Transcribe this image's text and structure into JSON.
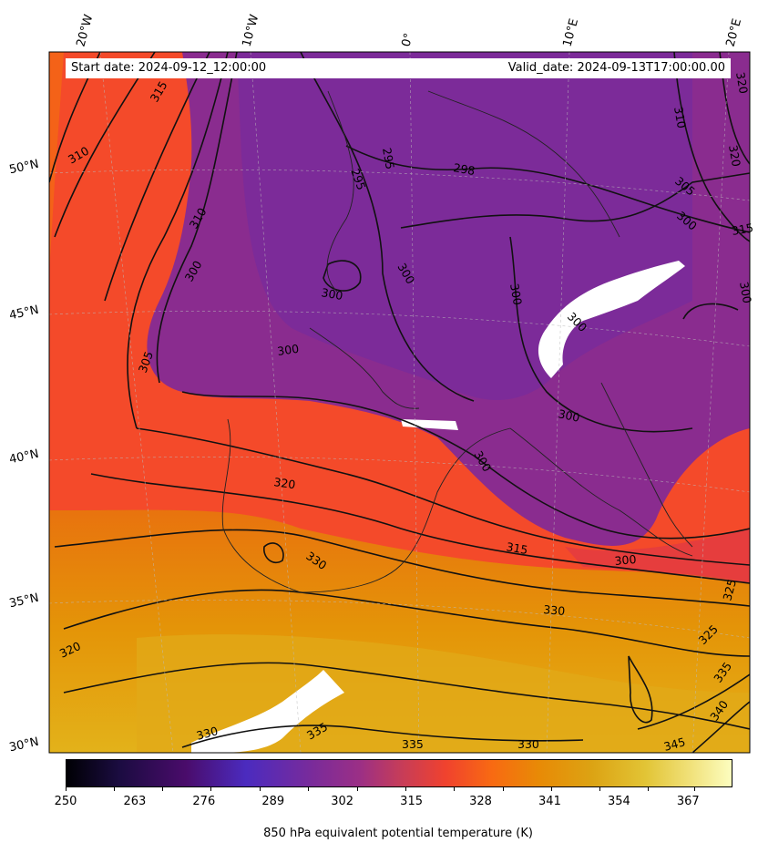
{
  "header": {
    "start_date": "Start date: 2024-09-12_12:00:00",
    "valid_date": "Valid_date: 2024-09-13T17:00:00.00"
  },
  "longitude_labels": [
    "20°W",
    "10°W",
    "0°",
    "10°E",
    "20°E"
  ],
  "latitude_labels": [
    "50°N",
    "45°N",
    "40°N",
    "35°N",
    "30°N"
  ],
  "contour_labels": [
    "300",
    "305",
    "310",
    "315",
    "320",
    "325",
    "330",
    "335",
    "340",
    "345",
    "295",
    "298"
  ],
  "colorbar": {
    "ticks": [
      "250",
      "263",
      "276",
      "289",
      "302",
      "315",
      "328",
      "341",
      "354",
      "367"
    ],
    "label": "850 hPa equivalent potential temperature (K)",
    "colormap": "plasma-like",
    "min": 250,
    "max": 375
  },
  "colors": {
    "cold": "#7f2a94",
    "mid": "#f3562a",
    "warm": "#e18a0a",
    "hot": "#e0b417"
  }
}
